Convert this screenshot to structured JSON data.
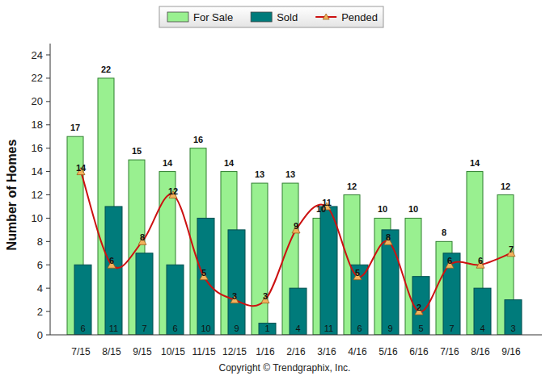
{
  "chart_data": {
    "type": "bar",
    "y_label": "Number of Homes",
    "annotations": [
      "Copyright © Trendgraphix, Inc."
    ],
    "categories": [
      "7/15",
      "8/15",
      "9/15",
      "10/15",
      "11/15",
      "12/15",
      "1/16",
      "2/16",
      "3/16",
      "4/16",
      "5/16",
      "6/16",
      "7/16",
      "8/16",
      "9/16"
    ],
    "series": [
      {
        "name": "For Sale",
        "type": "bar",
        "color": "#99f090",
        "values": [
          17,
          22,
          15,
          14,
          16,
          14,
          13,
          13,
          10,
          12,
          10,
          10,
          8,
          14,
          12
        ]
      },
      {
        "name": "Sold",
        "type": "bar",
        "color": "#007b7b",
        "values": [
          6,
          11,
          7,
          6,
          10,
          9,
          1,
          4,
          11,
          6,
          9,
          5,
          7,
          4,
          3
        ]
      },
      {
        "name": "Pended",
        "type": "line",
        "color": "#cc1111",
        "marker": "triangle",
        "line_style": "smooth",
        "values": [
          14,
          6,
          8,
          12,
          5,
          3,
          3,
          9,
          11,
          5,
          8,
          2,
          6,
          6,
          7
        ]
      }
    ],
    "ylim": [
      0,
      24
    ],
    "yticks": [
      0,
      2,
      4,
      6,
      8,
      10,
      12,
      14,
      16,
      18,
      20,
      22,
      24
    ],
    "grid": false,
    "legend": "top",
    "data_labels": true
  }
}
